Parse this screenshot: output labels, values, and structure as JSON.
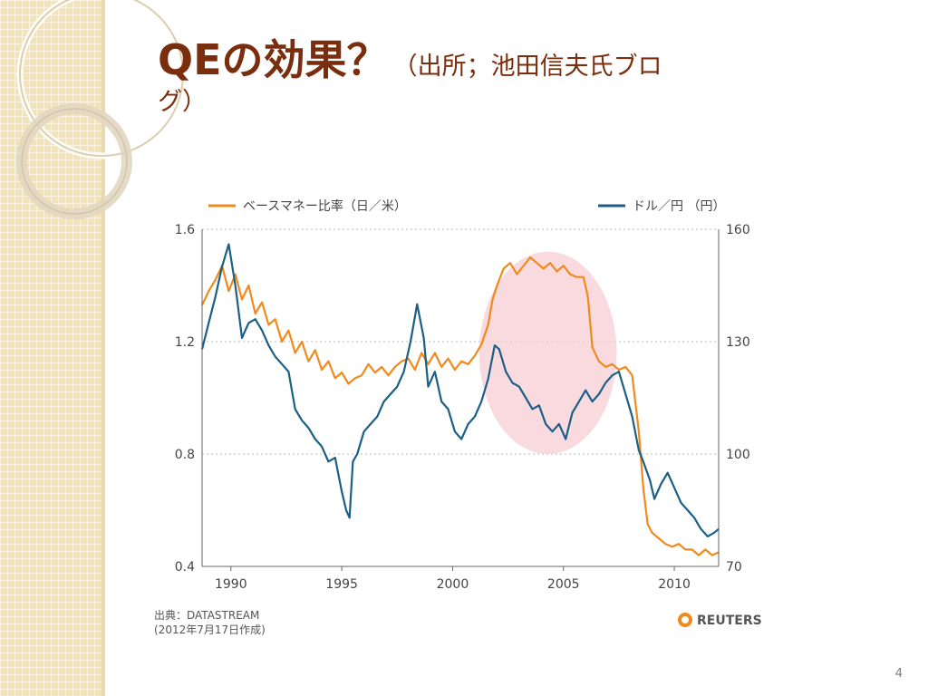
{
  "slide": {
    "title_main": "QEの効果？",
    "title_sub_line1": "（出所；池田信夫氏ブロ",
    "title_sub_line2": "グ）",
    "page_number": "4"
  },
  "source_note": {
    "line1": "出典：DATASTREAM",
    "line2": "(2012年7月17日作成)"
  },
  "logo_text": "REUTERS",
  "colors": {
    "orange": "#f08a1c",
    "blue": "#1b5f86",
    "highlight": "#f6cdd4",
    "title": "#7a2e0e"
  },
  "chart_data": {
    "type": "line",
    "legend": {
      "orange_label": "ベースマネー比率（日／米）",
      "blue_label": "ドル／円 （円）",
      "placement": "top"
    },
    "x_range": [
      1988.7,
      2012.0
    ],
    "x_ticks": [
      "1990",
      "1995",
      "2000",
      "2005",
      "2010"
    ],
    "left_axis": {
      "range": [
        0.4,
        1.6
      ],
      "ticks": [
        "1.6",
        "1.2",
        "0.8",
        "0.4"
      ]
    },
    "right_axis": {
      "range": [
        70,
        160
      ],
      "ticks": [
        "160",
        "130",
        "100",
        "70"
      ]
    },
    "grid": "horizontal dotted",
    "highlight_region": {
      "x": [
        2001.2,
        2007.4
      ],
      "y_right": [
        100,
        154
      ]
    },
    "series": [
      {
        "name": "ベースマネー比率（日／米）",
        "axis": "left",
        "x": [
          1988.7,
          1989.0,
          1989.3,
          1989.6,
          1989.9,
          1990.2,
          1990.5,
          1990.8,
          1991.1,
          1991.4,
          1991.7,
          1992.0,
          1992.3,
          1992.6,
          1992.9,
          1993.2,
          1993.5,
          1993.8,
          1994.1,
          1994.4,
          1994.7,
          1995.0,
          1995.3,
          1995.6,
          1995.9,
          1996.2,
          1996.5,
          1996.8,
          1997.1,
          1997.4,
          1997.7,
          1998.0,
          1998.3,
          1998.6,
          1998.9,
          1999.2,
          1999.5,
          1999.8,
          2000.1,
          2000.4,
          2000.7,
          2001.0,
          2001.3,
          2001.6,
          2001.8,
          2002.0,
          2002.3,
          2002.6,
          2002.9,
          2003.2,
          2003.5,
          2003.8,
          2004.1,
          2004.4,
          2004.7,
          2005.0,
          2005.3,
          2005.6,
          2005.9,
          2006.1,
          2006.3,
          2006.6,
          2006.9,
          2007.2,
          2007.5,
          2007.8,
          2008.1,
          2008.4,
          2008.6,
          2008.8,
          2009.0,
          2009.3,
          2009.6,
          2009.9,
          2010.2,
          2010.5,
          2010.8,
          2011.1,
          2011.4,
          2011.7,
          2012.0
        ],
        "values": [
          1.33,
          1.38,
          1.42,
          1.47,
          1.38,
          1.44,
          1.35,
          1.4,
          1.3,
          1.34,
          1.26,
          1.28,
          1.2,
          1.24,
          1.16,
          1.2,
          1.13,
          1.17,
          1.1,
          1.13,
          1.07,
          1.09,
          1.05,
          1.07,
          1.08,
          1.12,
          1.09,
          1.11,
          1.08,
          1.11,
          1.13,
          1.14,
          1.1,
          1.16,
          1.12,
          1.16,
          1.11,
          1.14,
          1.1,
          1.13,
          1.12,
          1.15,
          1.19,
          1.26,
          1.35,
          1.4,
          1.46,
          1.48,
          1.44,
          1.47,
          1.5,
          1.48,
          1.46,
          1.48,
          1.45,
          1.47,
          1.44,
          1.43,
          1.43,
          1.36,
          1.18,
          1.13,
          1.11,
          1.12,
          1.1,
          1.11,
          1.08,
          0.88,
          0.68,
          0.55,
          0.52,
          0.5,
          0.48,
          0.47,
          0.48,
          0.46,
          0.46,
          0.44,
          0.46,
          0.44,
          0.45
        ]
      },
      {
        "name": "ドル／円 （円）",
        "axis": "right",
        "x": [
          1988.7,
          1989.0,
          1989.3,
          1989.6,
          1989.9,
          1990.2,
          1990.5,
          1990.8,
          1991.1,
          1991.4,
          1991.7,
          1992.0,
          1992.3,
          1992.6,
          1992.9,
          1993.2,
          1993.5,
          1993.8,
          1994.1,
          1994.4,
          1994.7,
          1995.0,
          1995.2,
          1995.35,
          1995.5,
          1995.7,
          1996.0,
          1996.3,
          1996.6,
          1996.9,
          1997.2,
          1997.5,
          1997.8,
          1998.1,
          1998.4,
          1998.7,
          1998.9,
          1999.2,
          1999.5,
          1999.8,
          2000.1,
          2000.4,
          2000.7,
          2001.0,
          2001.3,
          2001.6,
          2001.9,
          2002.1,
          2002.4,
          2002.7,
          2003.0,
          2003.3,
          2003.6,
          2003.9,
          2004.2,
          2004.5,
          2004.8,
          2005.1,
          2005.4,
          2005.7,
          2006.0,
          2006.3,
          2006.6,
          2006.9,
          2007.2,
          2007.5,
          2007.8,
          2008.1,
          2008.4,
          2008.6,
          2008.9,
          2009.1,
          2009.4,
          2009.7,
          2010.0,
          2010.3,
          2010.6,
          2010.9,
          2011.2,
          2011.5,
          2011.8,
          2012.0
        ],
        "values": [
          128,
          135,
          142,
          150,
          156,
          145,
          131,
          135,
          136,
          133,
          129,
          126,
          124,
          122,
          112,
          109,
          107,
          104,
          102,
          98,
          99,
          90,
          85,
          83,
          98,
          100,
          106,
          108,
          110,
          114,
          116,
          118,
          122,
          130,
          140,
          131,
          118,
          122,
          114,
          112,
          106,
          104,
          108,
          110,
          114,
          120,
          129,
          128,
          122,
          119,
          118,
          115,
          112,
          113,
          108,
          106,
          108,
          104,
          111,
          114,
          117,
          114,
          116,
          119,
          121,
          122,
          116,
          110,
          101,
          98,
          93,
          88,
          92,
          95,
          91,
          87,
          85,
          83,
          80,
          78,
          79,
          80
        ]
      }
    ]
  }
}
